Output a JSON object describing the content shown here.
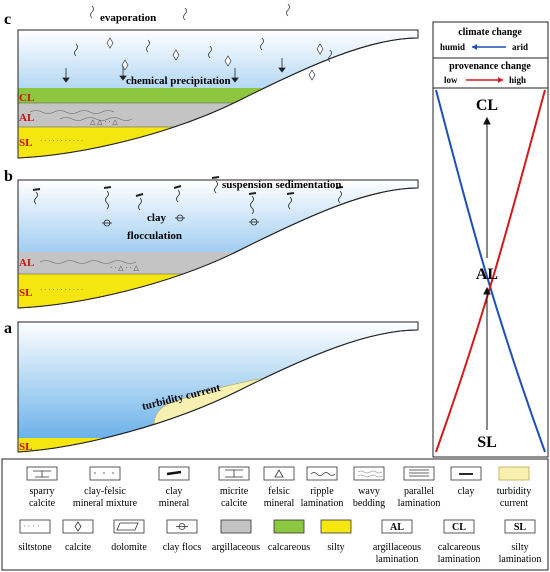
{
  "panels": {
    "c": {
      "letter": "c",
      "process_top": "evaporation",
      "process_mid": "chemical precipitation",
      "layers": [
        "CL",
        "AL",
        "SL"
      ]
    },
    "b": {
      "letter": "b",
      "process_top": "suspension sedimentation",
      "process_a": "clay",
      "process_b": "flocculation",
      "layers": [
        "AL",
        "SL"
      ]
    },
    "a": {
      "letter": "a",
      "process": "turbidity current",
      "layers": [
        "SL"
      ]
    }
  },
  "side": {
    "climate_title": "climate change",
    "climate_left": "humid",
    "climate_right": "arid",
    "provenance_title": "provenance change",
    "provenance_left": "low",
    "provenance_right": "high",
    "stage_top": "CL",
    "stage_mid": "AL",
    "stage_bottom": "SL"
  },
  "legend": {
    "row1": [
      {
        "label1": "sparry",
        "label2": "calcite"
      },
      {
        "label1": "clay-felsic",
        "label2": "mineral mixture"
      },
      {
        "label1": "clay",
        "label2": "mineral"
      },
      {
        "label1": "micrite",
        "label2": "calcite"
      },
      {
        "label1": "felsic",
        "label2": "mineral"
      },
      {
        "label1": "ripple",
        "label2": "lamination"
      },
      {
        "label1": "wavy",
        "label2": "bedding"
      },
      {
        "label1": "parallel",
        "label2": "lamination"
      },
      {
        "label1": "clay",
        "label2": ""
      },
      {
        "label1": "turbidity",
        "label2": "current"
      }
    ],
    "row2": [
      {
        "label1": "siltstone",
        "label2": "",
        "symbol": ""
      },
      {
        "label1": "calcite",
        "label2": "",
        "symbol": ""
      },
      {
        "label1": "dolomite",
        "label2": "",
        "symbol": ""
      },
      {
        "label1": "clay flocs",
        "label2": "",
        "symbol": ""
      },
      {
        "label1": "argillaceous",
        "label2": "",
        "symbol": ""
      },
      {
        "label1": "calcareous",
        "label2": "",
        "symbol": ""
      },
      {
        "label1": "silty",
        "label2": "",
        "symbol": ""
      },
      {
        "label1": "argillaceous",
        "label2": "lamination",
        "symbol": "AL"
      },
      {
        "label1": "calcareous",
        "label2": "lamination",
        "symbol": "CL"
      },
      {
        "label1": "silty",
        "label2": "lamination",
        "symbol": "SL"
      }
    ]
  },
  "colors": {
    "water_top": "#ffffff",
    "water_bottom": "#5aa9e6",
    "calcareous": "#8dc63f",
    "argillaceous": "#c4c4c4",
    "silty": "#f5e60f",
    "turbidity": "#f8f0b0",
    "layer_text": "#cc1010",
    "humid_arrow": "#1f4fb5",
    "arid_arrow": "#d11a1a"
  }
}
